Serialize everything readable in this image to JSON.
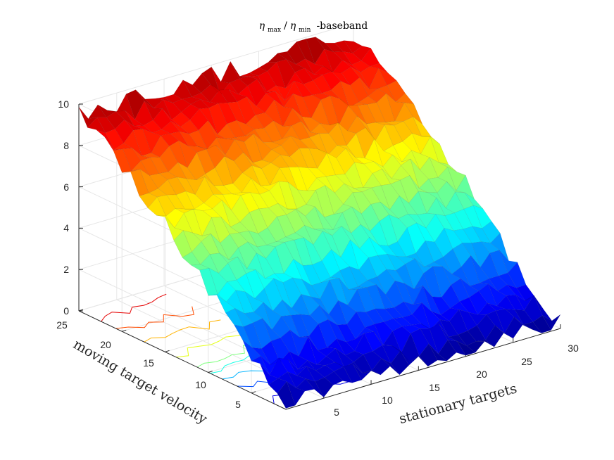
{
  "chart_data": {
    "type": "surface3d",
    "title": {
      "symbol": "η",
      "numerator_subscript": "max",
      "slash": "/",
      "denominator_subscript": "min",
      "suffix": "-baseband"
    },
    "xlabel": "stationary targets",
    "ylabel": "moving target velocity",
    "zlabel": "",
    "x_ticks": [
      "5",
      "10",
      "15",
      "20",
      "25",
      "30"
    ],
    "y_ticks": [
      "5",
      "10",
      "15",
      "20",
      "25"
    ],
    "z_ticks": [
      "0",
      "2",
      "4",
      "6",
      "8",
      "10"
    ],
    "xlim": [
      1,
      30
    ],
    "ylim": [
      1,
      25
    ],
    "zlim": [
      0,
      10
    ],
    "colormap": "jet",
    "grid": true,
    "contours_on_floor": true,
    "shape": "z rises roughly linearly with moving target velocity from about 0.3 at velocity 1 to about 9.5 at velocity 25; nearly constant across stationary targets with small random ripple",
    "z_at_velocity": {
      "velocity": [
        1,
        5,
        10,
        15,
        20,
        25
      ],
      "z_approx": [
        0.3,
        1.5,
        4.0,
        6.2,
        8.0,
        9.5
      ]
    }
  }
}
